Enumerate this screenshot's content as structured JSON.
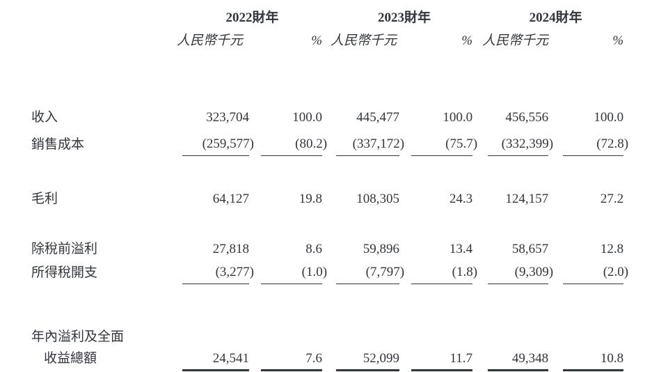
{
  "page": {
    "background_color": "#ffffff",
    "text_color": "#31353d",
    "rule_color": "#31353d"
  },
  "table": {
    "years": [
      {
        "label": "2022財年",
        "unit": "人民幣千元",
        "pct_symbol": "%"
      },
      {
        "label": "2023財年",
        "unit": "人民幣千元",
        "pct_symbol": "%"
      },
      {
        "label": "2024財年",
        "unit": "人民幣千元",
        "pct_symbol": "%"
      }
    ],
    "rows": [
      {
        "label": "收入",
        "values": [
          "323,704",
          "100.0",
          "445,477",
          "100.0",
          "456,556",
          "100.0"
        ],
        "underline": "none"
      },
      {
        "label": "銷售成本",
        "values": [
          "(259,577)",
          "(80.2)",
          "(337,172)",
          "(75.7)",
          "(332,399)",
          "(72.8)"
        ],
        "underline": "single"
      },
      {
        "label": "毛利",
        "values": [
          "64,127",
          "19.8",
          "108,305",
          "24.3",
          "124,157",
          "27.2"
        ],
        "underline": "none"
      },
      {
        "label": "除稅前溢利",
        "values": [
          "27,818",
          "8.6",
          "59,896",
          "13.4",
          "58,657",
          "12.8"
        ],
        "underline": "none"
      },
      {
        "label": "所得稅開支",
        "values": [
          "(3,277)",
          "(1.0)",
          "(7,797)",
          "(1.8)",
          "(9,309)",
          "(2.0)"
        ],
        "underline": "single"
      },
      {
        "label_line1": "年內溢利及全面",
        "label_line2": "收益總額",
        "values": [
          "24,541",
          "7.6",
          "52,099",
          "11.7",
          "49,348",
          "10.8"
        ],
        "underline": "double"
      }
    ]
  }
}
